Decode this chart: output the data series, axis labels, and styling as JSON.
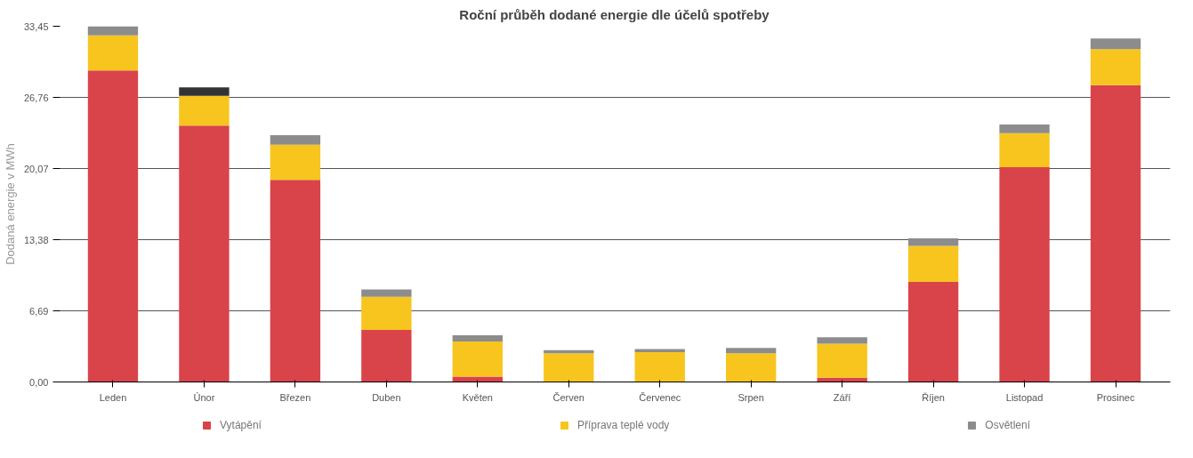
{
  "chart_data": {
    "type": "bar",
    "title": "Roční průběh dodané energie dle účelů spotřeby",
    "ylabel": "Dodaná energie v MWh",
    "categories": [
      "Leden",
      "Únor",
      "Březen",
      "Duben",
      "Květen",
      "Červen",
      "Červenec",
      "Srpen",
      "Září",
      "Říjen",
      "Listopad",
      "Prosinec"
    ],
    "stacked": true,
    "series": [
      {
        "name": "Vytápění",
        "color": "#d9434a",
        "values": [
          29.3,
          24.1,
          19.0,
          4.9,
          0.5,
          0,
          0,
          0,
          0.4,
          9.4,
          20.2,
          27.9
        ]
      },
      {
        "name": "Příprava teplé vody",
        "color": "#f7c51e",
        "values": [
          3.3,
          2.8,
          3.3,
          3.1,
          3.3,
          2.7,
          2.8,
          2.7,
          3.2,
          3.4,
          3.2,
          3.4
        ]
      },
      {
        "name": "Osvětlení",
        "color": "#8c8c8c",
        "colors": [
          "#8c8c8c",
          "#333333",
          "#8c8c8c",
          "#8c8c8c",
          "#8c8c8c",
          "#8c8c8c",
          "#8c8c8c",
          "#8c8c8c",
          "#8c8c8c",
          "#8c8c8c",
          "#8c8c8c",
          "#8c8c8c"
        ],
        "values": [
          0.85,
          0.8,
          0.9,
          0.7,
          0.6,
          0.3,
          0.3,
          0.5,
          0.6,
          0.7,
          0.8,
          1.0
        ]
      }
    ],
    "ylim": [
      0,
      33.45
    ],
    "yticks": [
      {
        "value": 0,
        "label": "0,00"
      },
      {
        "value": 6.69,
        "label": "6,69"
      },
      {
        "value": 13.38,
        "label": "13,38"
      },
      {
        "value": 20.07,
        "label": "20,07"
      },
      {
        "value": 26.76,
        "label": "26,76"
      },
      {
        "value": 33.45,
        "label": "33,45"
      }
    ],
    "grid": "y",
    "legend": "bottom"
  }
}
